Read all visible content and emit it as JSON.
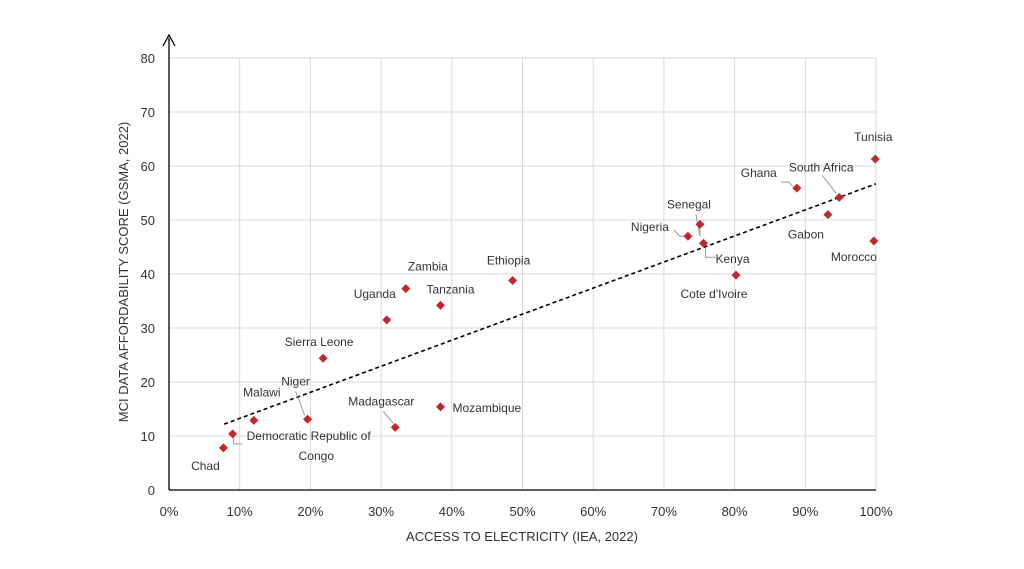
{
  "chart_data": {
    "type": "scatter",
    "title": "",
    "xlabel": "ACCESS TO ELECTRICITY (IEA, 2022)",
    "ylabel": "MCI DATA AFFORDABILITY SCORE (GSMA, 2022)",
    "xlim": [
      0,
      100
    ],
    "ylim": [
      0,
      80
    ],
    "x_ticks": [
      0,
      10,
      20,
      30,
      40,
      50,
      60,
      70,
      80,
      90,
      100
    ],
    "x_tick_labels": [
      "0%",
      "10%",
      "20%",
      "30%",
      "40%",
      "50%",
      "60%",
      "70%",
      "80%",
      "90%",
      "100%"
    ],
    "y_ticks": [
      0,
      10,
      20,
      30,
      40,
      50,
      60,
      70,
      80
    ],
    "y_tick_labels": [
      "0",
      "10",
      "20",
      "30",
      "40",
      "50",
      "60",
      "70",
      "80"
    ],
    "grid": true,
    "marker_color": "#c0282d",
    "trendline": {
      "style": "dashed",
      "x": [
        7.8,
        100
      ],
      "y": [
        12.2,
        56.7
      ]
    },
    "points": [
      {
        "label": "Chad",
        "x": 7.7,
        "y": 7.8
      },
      {
        "label": "Democratic Republic of Congo",
        "x": 9.0,
        "y": 10.4
      },
      {
        "label": "Malawi",
        "x": 12.0,
        "y": 12.9
      },
      {
        "label": "Niger",
        "x": 19.6,
        "y": 13.1
      },
      {
        "label": "Sierra Leone",
        "x": 21.8,
        "y": 24.4
      },
      {
        "label": "Madagascar",
        "x": 32.0,
        "y": 11.6
      },
      {
        "label": "Uganda",
        "x": 30.8,
        "y": 31.5
      },
      {
        "label": "Zambia",
        "x": 33.5,
        "y": 37.3
      },
      {
        "label": "Tanzania",
        "x": 38.4,
        "y": 34.2
      },
      {
        "label": "Mozambique",
        "x": 38.4,
        "y": 15.4
      },
      {
        "label": "Ethiopia",
        "x": 48.6,
        "y": 38.8
      },
      {
        "label": "Nigeria",
        "x": 73.4,
        "y": 47.0
      },
      {
        "label": "Senegal",
        "x": 75.1,
        "y": 49.2
      },
      {
        "label": "Kenya",
        "x": 75.6,
        "y": 45.7
      },
      {
        "label": "Cote d'Ivoire",
        "x": 80.2,
        "y": 39.8
      },
      {
        "label": "Ghana",
        "x": 88.8,
        "y": 55.9
      },
      {
        "label": "South Africa",
        "x": 94.8,
        "y": 54.2
      },
      {
        "label": "Gabon",
        "x": 93.2,
        "y": 51.0
      },
      {
        "label": "Tunisia",
        "x": 99.9,
        "y": 61.3
      },
      {
        "label": "Morocco",
        "x": 99.7,
        "y": 46.1
      }
    ]
  }
}
